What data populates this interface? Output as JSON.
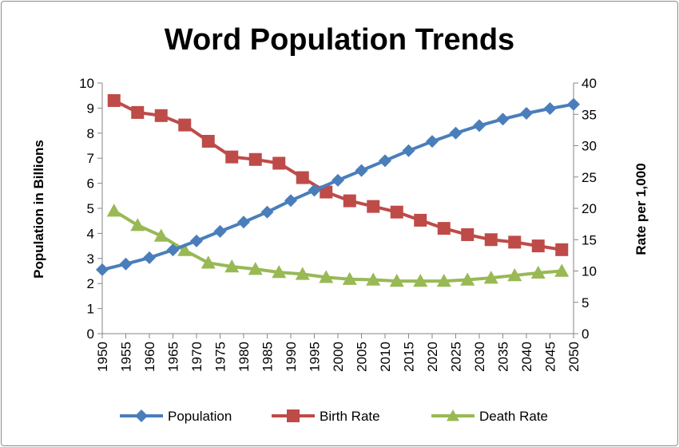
{
  "chart_data": {
    "type": "line",
    "title": "Word Population Trends",
    "x_categories": [
      "1950",
      "1955",
      "1960",
      "1965",
      "1970",
      "1975",
      "1980",
      "1985",
      "1990",
      "1995",
      "2000",
      "2005",
      "2010",
      "2015",
      "2020",
      "2025",
      "2030",
      "2035",
      "2040",
      "2045",
      "2050"
    ],
    "y_left": {
      "label": "Population in Billions",
      "min": 0,
      "max": 10,
      "step": 1
    },
    "y_right": {
      "label": "Rate per 1,000",
      "min": 0,
      "max": 40,
      "step": 5
    },
    "grid": false,
    "legend_position": "bottom",
    "series": [
      {
        "name": "Population",
        "axis": "left",
        "marker": "diamond",
        "color": "#4a7ebb",
        "points": [
          {
            "x": 1950,
            "y": 2.55
          },
          {
            "x": 1955,
            "y": 2.78
          },
          {
            "x": 1960,
            "y": 3.03
          },
          {
            "x": 1965,
            "y": 3.34
          },
          {
            "x": 1970,
            "y": 3.7
          },
          {
            "x": 1975,
            "y": 4.08
          },
          {
            "x": 1980,
            "y": 4.45
          },
          {
            "x": 1985,
            "y": 4.85
          },
          {
            "x": 1990,
            "y": 5.31
          },
          {
            "x": 1995,
            "y": 5.72
          },
          {
            "x": 2000,
            "y": 6.12
          },
          {
            "x": 2005,
            "y": 6.51
          },
          {
            "x": 2010,
            "y": 6.9
          },
          {
            "x": 2015,
            "y": 7.3
          },
          {
            "x": 2020,
            "y": 7.67
          },
          {
            "x": 2025,
            "y": 8.0
          },
          {
            "x": 2030,
            "y": 8.3
          },
          {
            "x": 2035,
            "y": 8.56
          },
          {
            "x": 2040,
            "y": 8.79
          },
          {
            "x": 2045,
            "y": 8.98
          },
          {
            "x": 2050,
            "y": 9.15
          }
        ]
      },
      {
        "name": "Birth Rate",
        "axis": "right",
        "marker": "square",
        "color": "#be4b48",
        "points": [
          {
            "x": 1952.5,
            "y": 37.2
          },
          {
            "x": 1957.5,
            "y": 35.3
          },
          {
            "x": 1962.5,
            "y": 34.8
          },
          {
            "x": 1967.5,
            "y": 33.3
          },
          {
            "x": 1972.5,
            "y": 30.7
          },
          {
            "x": 1977.5,
            "y": 28.2
          },
          {
            "x": 1982.5,
            "y": 27.8
          },
          {
            "x": 1987.5,
            "y": 27.2
          },
          {
            "x": 1992.5,
            "y": 24.9
          },
          {
            "x": 1997.5,
            "y": 22.6
          },
          {
            "x": 2002.5,
            "y": 21.2
          },
          {
            "x": 2007.5,
            "y": 20.3
          },
          {
            "x": 2012.5,
            "y": 19.4
          },
          {
            "x": 2017.5,
            "y": 18.1
          },
          {
            "x": 2022.5,
            "y": 16.8
          },
          {
            "x": 2027.5,
            "y": 15.8
          },
          {
            "x": 2032.5,
            "y": 15.0
          },
          {
            "x": 2037.5,
            "y": 14.6
          },
          {
            "x": 2042.5,
            "y": 14.0
          },
          {
            "x": 2047.5,
            "y": 13.4
          }
        ]
      },
      {
        "name": "Death Rate",
        "axis": "right",
        "marker": "triangle",
        "color": "#98b954",
        "points": [
          {
            "x": 1952.5,
            "y": 19.6
          },
          {
            "x": 1957.5,
            "y": 17.3
          },
          {
            "x": 1962.5,
            "y": 15.6
          },
          {
            "x": 1967.5,
            "y": 13.3
          },
          {
            "x": 1972.5,
            "y": 11.3
          },
          {
            "x": 1977.5,
            "y": 10.7
          },
          {
            "x": 1982.5,
            "y": 10.3
          },
          {
            "x": 1987.5,
            "y": 9.8
          },
          {
            "x": 1992.5,
            "y": 9.5
          },
          {
            "x": 1997.5,
            "y": 9.0
          },
          {
            "x": 2002.5,
            "y": 8.7
          },
          {
            "x": 2007.5,
            "y": 8.6
          },
          {
            "x": 2012.5,
            "y": 8.4
          },
          {
            "x": 2017.5,
            "y": 8.4
          },
          {
            "x": 2022.5,
            "y": 8.4
          },
          {
            "x": 2027.5,
            "y": 8.6
          },
          {
            "x": 2032.5,
            "y": 8.9
          },
          {
            "x": 2037.5,
            "y": 9.3
          },
          {
            "x": 2042.5,
            "y": 9.7
          },
          {
            "x": 2047.5,
            "y": 10.0
          }
        ]
      }
    ]
  }
}
